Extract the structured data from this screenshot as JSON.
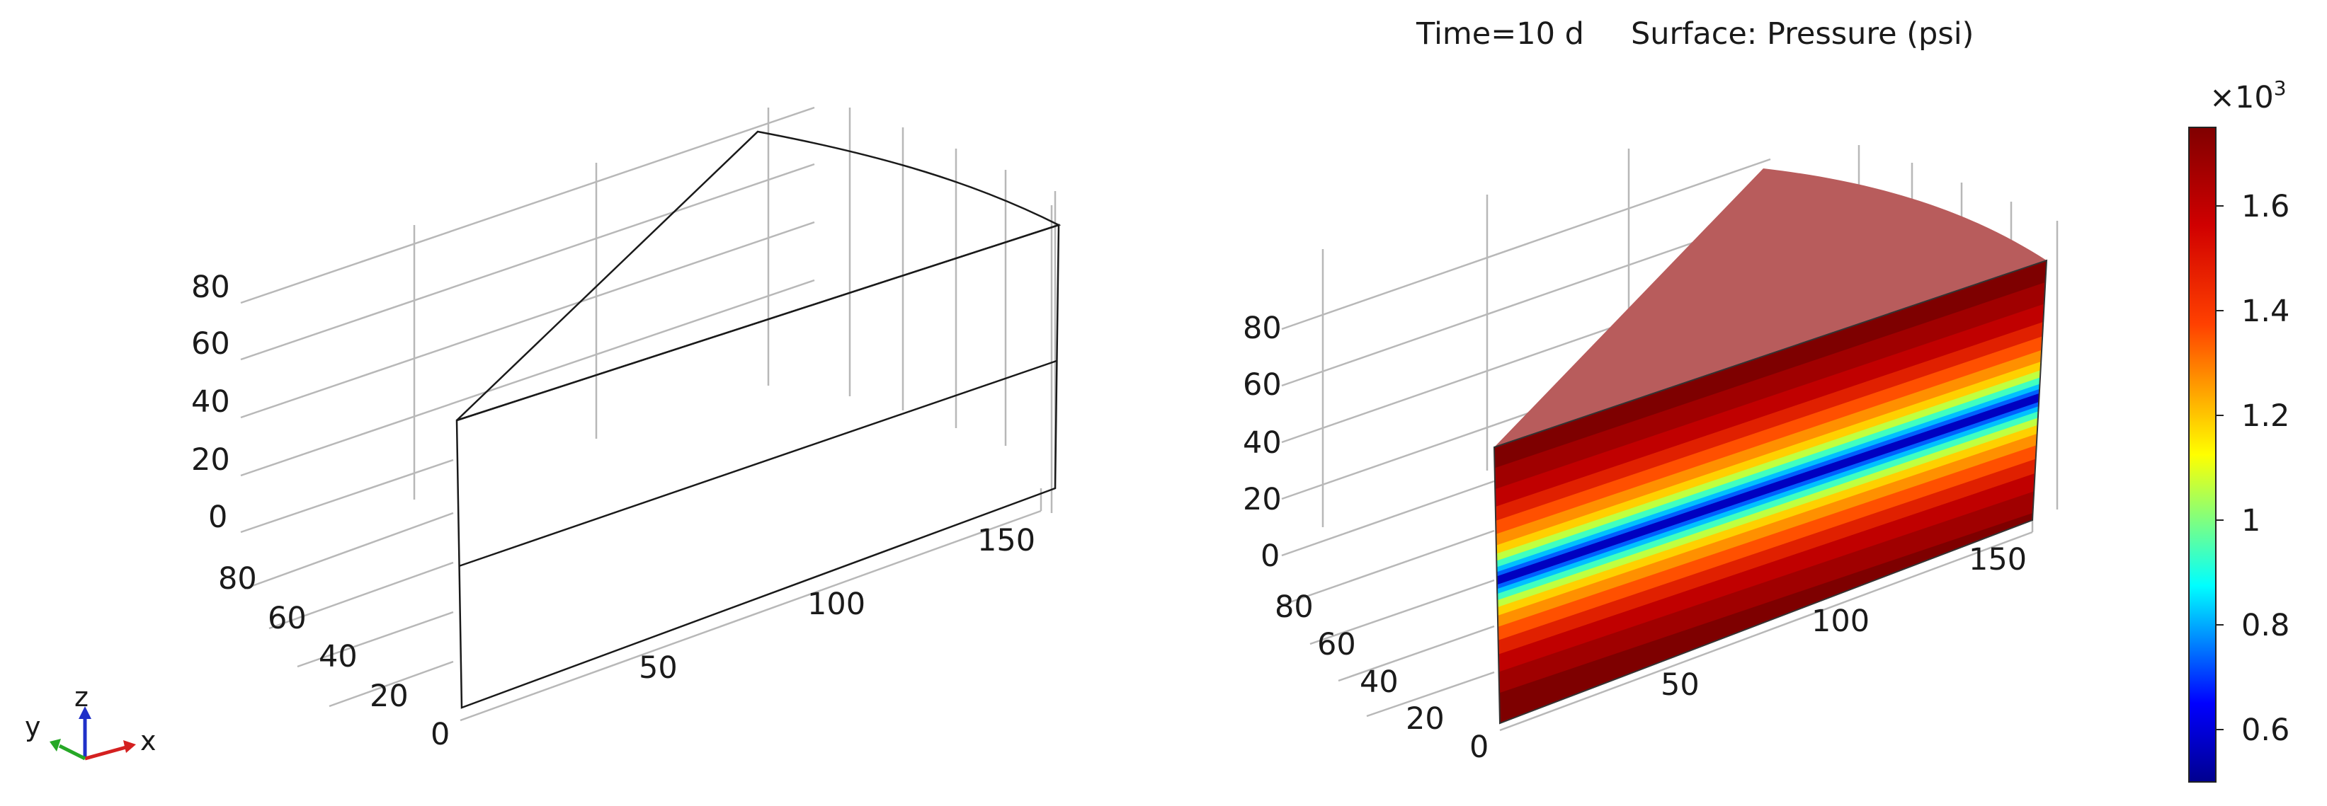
{
  "plot_title": {
    "time": "Time=10 d",
    "surface": "Surface: Pressure (psi)"
  },
  "left_plot": {
    "z_ticks": [
      "0",
      "20",
      "40",
      "60",
      "80"
    ],
    "y_ticks": [
      "20",
      "40",
      "60",
      "80"
    ],
    "x_ticks": [
      "0",
      "50",
      "100",
      "150"
    ],
    "colors": {
      "top_face": "#d9d9d9",
      "side_face": "#9c9c9c"
    }
  },
  "right_plot": {
    "z_ticks": [
      "0",
      "20",
      "40",
      "60",
      "80"
    ],
    "y_ticks": [
      "20",
      "40",
      "60",
      "80"
    ],
    "x_ticks": [
      "0",
      "50",
      "100",
      "150"
    ],
    "colors": {
      "top_face": "#b85c5c",
      "side_face": "#7e0000",
      "minimum_line": "#00008f"
    }
  },
  "axis_triad": {
    "x_label": "x",
    "y_label": "y",
    "z_label": "z",
    "colors": {
      "x": "#d42020",
      "y": "#26a826",
      "z": "#2030c8"
    }
  },
  "colorbar": {
    "multiplier_base": "×10",
    "multiplier_exp": "3",
    "ticks": [
      "0.6",
      "0.8",
      "1",
      "1.2",
      "1.4",
      "1.6"
    ],
    "tick_values": [
      0.6,
      0.8,
      1.0,
      1.2,
      1.4,
      1.6
    ],
    "range": [
      0.5,
      1.75
    ],
    "colormap": [
      "#00008f",
      "#0000ff",
      "#0080ff",
      "#00ffff",
      "#80ff80",
      "#ffff00",
      "#ff8000",
      "#ff0000",
      "#800000"
    ]
  }
}
